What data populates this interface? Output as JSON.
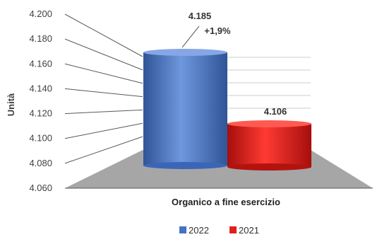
{
  "chart_data": {
    "type": "bar",
    "categories": [
      "Organico a fine esercizio"
    ],
    "series": [
      {
        "name": "2022",
        "values": [
          4185
        ],
        "color": "#4472C4"
      },
      {
        "name": "2021",
        "values": [
          4106
        ],
        "color": "#E0201B"
      }
    ],
    "ylim": [
      4060,
      4200
    ],
    "yticks": [
      "4.060",
      "4.080",
      "4.100",
      "4.120",
      "4.140",
      "4.160",
      "4.180",
      "4.200"
    ],
    "ylabel": "Unità",
    "xlabel": "Organico a fine esercizio",
    "data_labels": [
      "4.185",
      "4.106"
    ],
    "annotation": "+1,9%",
    "legend_position": "bottom",
    "grid": true,
    "style": "3d-cylinder"
  }
}
